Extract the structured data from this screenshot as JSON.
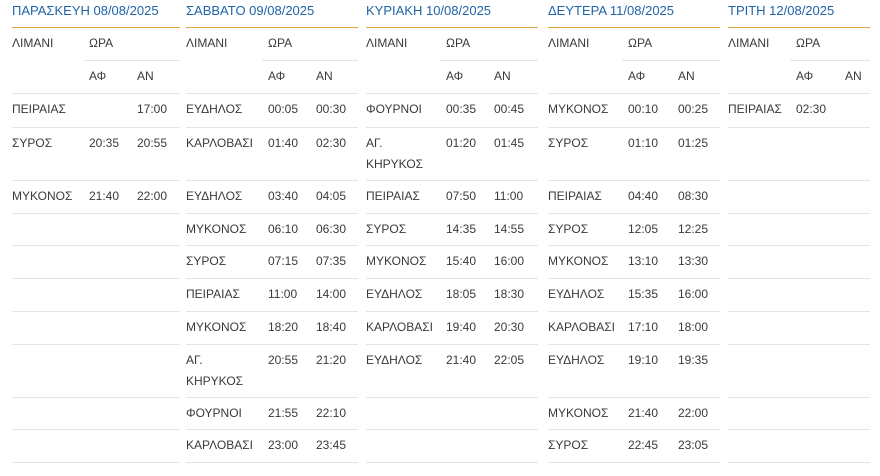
{
  "columns": [
    {
      "title": "ΠΑΡΑΣΚΕΥΗ 08/08/2025",
      "port_header": "ΛΙΜΑΝΙ",
      "time_header": "ΩΡΑ",
      "dep_header": "ΑΦ",
      "arr_header": "ΑΝ",
      "rows": [
        {
          "port": "ΠΕΙΡΑΙΑΣ",
          "dep": "",
          "arr": "17:00"
        },
        {
          "port": "ΣΥΡΟΣ",
          "dep": "20:35",
          "arr": "20:55"
        },
        {
          "port": "ΜΥΚΟΝΟΣ",
          "dep": "21:40",
          "arr": "22:00"
        },
        {
          "port": "",
          "dep": "",
          "arr": ""
        },
        {
          "port": "",
          "dep": "",
          "arr": ""
        },
        {
          "port": "",
          "dep": "",
          "arr": ""
        },
        {
          "port": "",
          "dep": "",
          "arr": ""
        },
        {
          "port": "",
          "dep": "",
          "arr": ""
        },
        {
          "port": "",
          "dep": "",
          "arr": ""
        },
        {
          "port": "",
          "dep": "",
          "arr": ""
        }
      ]
    },
    {
      "title": "ΣΑΒΒΑΤΟ 09/08/2025",
      "port_header": "ΛΙΜΑΝΙ",
      "time_header": "ΩΡΑ",
      "dep_header": "ΑΦ",
      "arr_header": "ΑΝ",
      "rows": [
        {
          "port": "ΕΥΔΗΛΟΣ",
          "dep": "00:05",
          "arr": "00:30"
        },
        {
          "port": "ΚΑΡΛΟΒΑΣΙ",
          "dep": "01:40",
          "arr": "02:30"
        },
        {
          "port": "ΕΥΔΗΛΟΣ",
          "dep": "03:40",
          "arr": "04:05"
        },
        {
          "port": "ΜΥΚΟΝΟΣ",
          "dep": "06:10",
          "arr": "06:30"
        },
        {
          "port": "ΣΥΡΟΣ",
          "dep": "07:15",
          "arr": "07:35"
        },
        {
          "port": "ΠΕΙΡΑΙΑΣ",
          "dep": "11:00",
          "arr": "14:00"
        },
        {
          "port": "ΜΥΚΟΝΟΣ",
          "dep": "18:20",
          "arr": "18:40"
        },
        {
          "port": "ΑΓ.\nΚΗΡΥΚΟΣ",
          "dep": "20:55",
          "arr": "21:20"
        },
        {
          "port": "ΦΟΥΡΝΟΙ",
          "dep": "21:55",
          "arr": "22:10"
        },
        {
          "port": "ΚΑΡΛΟΒΑΣΙ",
          "dep": "23:00",
          "arr": "23:45"
        }
      ]
    },
    {
      "title": "ΚΥΡΙΑΚΗ 10/08/2025",
      "port_header": "ΛΙΜΑΝΙ",
      "time_header": "ΩΡΑ",
      "dep_header": "ΑΦ",
      "arr_header": "ΑΝ",
      "rows": [
        {
          "port": "ΦΟΥΡΝΟΙ",
          "dep": "00:35",
          "arr": "00:45"
        },
        {
          "port": "ΑΓ.\nΚΗΡΥΚΟΣ",
          "dep": "01:20",
          "arr": "01:45"
        },
        {
          "port": "ΠΕΙΡΑΙΑΣ",
          "dep": "07:50",
          "arr": "11:00"
        },
        {
          "port": "ΣΥΡΟΣ",
          "dep": "14:35",
          "arr": "14:55"
        },
        {
          "port": "ΜΥΚΟΝΟΣ",
          "dep": "15:40",
          "arr": "16:00"
        },
        {
          "port": "ΕΥΔΗΛΟΣ",
          "dep": "18:05",
          "arr": "18:30"
        },
        {
          "port": "ΚΑΡΛΟΒΑΣΙ",
          "dep": "19:40",
          "arr": "20:30"
        },
        {
          "port": "ΕΥΔΗΛΟΣ",
          "dep": "21:40",
          "arr": "22:05"
        },
        {
          "port": "",
          "dep": "",
          "arr": ""
        },
        {
          "port": "",
          "dep": "",
          "arr": ""
        }
      ]
    },
    {
      "title": "ΔΕΥΤΕΡΑ  11/08/2025",
      "port_header": "ΛΙΜΑΝΙ",
      "time_header": "ΩΡΑ",
      "dep_header": "ΑΦ",
      "arr_header": "ΑΝ",
      "rows": [
        {
          "port": "ΜΥΚΟΝΟΣ",
          "dep": "00:10",
          "arr": "00:25"
        },
        {
          "port": "ΣΥΡΟΣ",
          "dep": "01:10",
          "arr": "01:25"
        },
        {
          "port": "ΠΕΙΡΑΙΑΣ",
          "dep": "04:40",
          "arr": "08:30"
        },
        {
          "port": "ΣΥΡΟΣ",
          "dep": "12:05",
          "arr": "12:25"
        },
        {
          "port": "ΜΥΚΟΝΟΣ",
          "dep": "13:10",
          "arr": "13:30"
        },
        {
          "port": "ΕΥΔΗΛΟΣ",
          "dep": "15:35",
          "arr": "16:00"
        },
        {
          "port": "ΚΑΡΛΟΒΑΣΙ",
          "dep": "17:10",
          "arr": "18:00"
        },
        {
          "port": "ΕΥΔΗΛΟΣ",
          "dep": "19:10",
          "arr": "19:35"
        },
        {
          "port": "ΜΥΚΟΝΟΣ",
          "dep": "21:40",
          "arr": "22:00"
        },
        {
          "port": "ΣΥΡΟΣ",
          "dep": "22:45",
          "arr": "23:05"
        }
      ]
    },
    {
      "title": "ΤΡΙΤΗ 12/08/2025",
      "port_header": "ΛΙΜΑΝΙ",
      "time_header": "ΩΡΑ",
      "dep_header": "ΑΦ",
      "arr_header": "ΑΝ",
      "rows": [
        {
          "port": "ΠΕΙΡΑΙΑΣ",
          "dep": "02:30",
          "arr": ""
        },
        {
          "port": "",
          "dep": "",
          "arr": ""
        },
        {
          "port": "",
          "dep": "",
          "arr": ""
        },
        {
          "port": "",
          "dep": "",
          "arr": ""
        },
        {
          "port": "",
          "dep": "",
          "arr": ""
        },
        {
          "port": "",
          "dep": "",
          "arr": ""
        },
        {
          "port": "",
          "dep": "",
          "arr": ""
        },
        {
          "port": "",
          "dep": "",
          "arr": ""
        },
        {
          "port": "",
          "dep": "",
          "arr": ""
        },
        {
          "port": "",
          "dep": "",
          "arr": ""
        }
      ]
    }
  ]
}
